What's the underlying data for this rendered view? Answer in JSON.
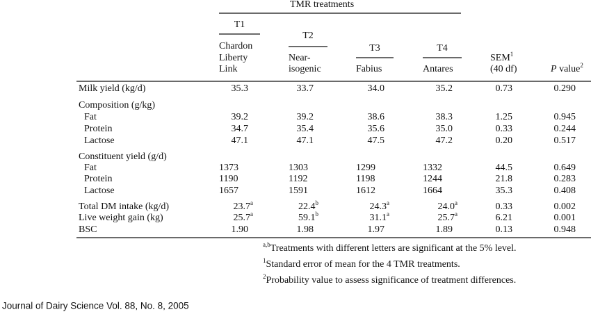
{
  "table": {
    "group_header": "TMR treatments",
    "treatments": [
      {
        "label": "T1",
        "lines": [
          "Chardon",
          "Liberty",
          "Link"
        ]
      },
      {
        "label": "T2",
        "lines": [
          "Near-",
          "isogenic"
        ]
      },
      {
        "label": "T3",
        "lines": [
          "Fabius"
        ]
      },
      {
        "label": "T4",
        "lines": [
          "Antares"
        ]
      }
    ],
    "sem": {
      "text": "SEM",
      "sup": "1",
      "line2": "(40 df)"
    },
    "p_value": {
      "italic": "P",
      "text": " value",
      "sup": "2"
    },
    "rows": [
      {
        "label": "Milk yield (kg/d)",
        "cells": [
          "35.3",
          "33.7",
          "34.0",
          "35.2",
          "0.73",
          "0.290"
        ]
      },
      {
        "label": "Composition (g/kg)"
      },
      {
        "label": "Fat",
        "indent": true,
        "cells": [
          "39.2",
          "39.2",
          "38.6",
          "38.3",
          "1.25",
          "0.945"
        ]
      },
      {
        "label": "Protein",
        "indent": true,
        "cells": [
          "34.7",
          "35.4",
          "35.6",
          "35.0",
          "0.33",
          "0.244"
        ]
      },
      {
        "label": "Lactose",
        "indent": true,
        "cells": [
          "47.1",
          "47.1",
          "47.5",
          "47.2",
          "0.20",
          "0.517"
        ]
      },
      {
        "label": "Constituent yield (g/d)"
      },
      {
        "label": "Fat",
        "indent": true,
        "cells": [
          "1373",
          "1303",
          "1299",
          "1332",
          "44.5",
          "0.649"
        ]
      },
      {
        "label": "Protein",
        "indent": true,
        "cells": [
          "1190",
          "1192",
          "1198",
          "1244",
          "21.8",
          "0.283"
        ]
      },
      {
        "label": "Lactose",
        "indent": true,
        "cells": [
          "1657",
          "1591",
          "1612",
          "1664",
          "35.3",
          "0.408"
        ]
      },
      {
        "label": "Total DM intake (kg/d)",
        "cells": [
          {
            "value": "23.7",
            "sup": "a"
          },
          {
            "value": "22.4",
            "sup": "b"
          },
          {
            "value": "24.3",
            "sup": "a"
          },
          {
            "value": "24.0",
            "sup": "a"
          },
          "0.33",
          "0.002"
        ]
      },
      {
        "label": "Live weight gain (kg)",
        "cells": [
          {
            "value": "25.7",
            "sup": "a"
          },
          {
            "value": "59.1",
            "sup": "b"
          },
          {
            "value": "31.1",
            "sup": "a"
          },
          {
            "value": "25.7",
            "sup": "a"
          },
          "6.21",
          "0.001"
        ]
      },
      {
        "label": "BSC",
        "cells": [
          "1.90",
          "1.98",
          "1.97",
          "1.89",
          "0.13",
          "0.948"
        ]
      }
    ],
    "footnotes": [
      {
        "sup": "a,b",
        "text": "Treatments with different letters are significant at the 5% level."
      },
      {
        "sup": "1",
        "text": "Standard error of mean for the 4 TMR treatments."
      },
      {
        "sup": "2",
        "text": "Probability value to assess significance of treatment differences."
      }
    ]
  },
  "footer": "Journal of Dairy Science Vol. 88, No. 8, 2005"
}
